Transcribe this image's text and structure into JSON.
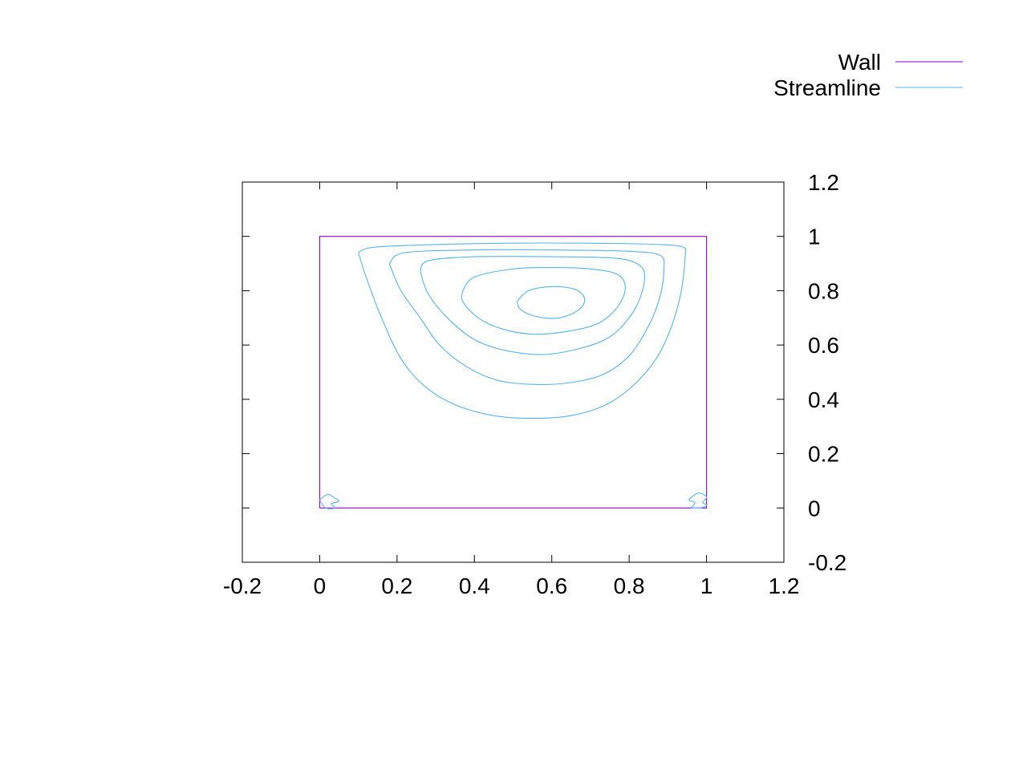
{
  "chart_data": {
    "type": "line",
    "title": "",
    "xlabel": "",
    "ylabel": "",
    "xlim": [
      -0.2,
      1.2
    ],
    "ylim": [
      -0.2,
      1.2
    ],
    "x_ticks": [
      "-0.2",
      "0",
      "0.2",
      "0.4",
      "0.6",
      "0.8",
      "1",
      "1.2"
    ],
    "y_ticks": [
      "-0.2",
      "0",
      "0.2",
      "0.4",
      "0.6",
      "0.8",
      "1",
      "1.2"
    ],
    "y_axis_side": "right",
    "grid": false,
    "legend_position": "top-right",
    "legend": [
      {
        "label": "Wall",
        "color": "#9400d3"
      },
      {
        "label": "Streamline",
        "color": "#56b4e9"
      }
    ],
    "series": [
      {
        "name": "Wall",
        "color": "#9400d3",
        "paths": [
          [
            [
              0,
              0
            ],
            [
              1,
              0
            ],
            [
              1,
              1
            ],
            [
              0,
              1
            ],
            [
              0,
              0
            ]
          ]
        ]
      },
      {
        "name": "Streamline",
        "color": "#56b4e9",
        "paths": [
          [
            [
              0.1,
              0.94
            ],
            [
              0.14,
              0.96
            ],
            [
              0.3,
              0.97
            ],
            [
              0.5,
              0.975
            ],
            [
              0.7,
              0.975
            ],
            [
              0.88,
              0.97
            ],
            [
              0.94,
              0.96
            ],
            [
              0.945,
              0.93
            ],
            [
              0.935,
              0.8
            ],
            [
              0.91,
              0.67
            ],
            [
              0.87,
              0.55
            ],
            [
              0.81,
              0.45
            ],
            [
              0.74,
              0.38
            ],
            [
              0.65,
              0.34
            ],
            [
              0.55,
              0.33
            ],
            [
              0.45,
              0.34
            ],
            [
              0.35,
              0.38
            ],
            [
              0.27,
              0.45
            ],
            [
              0.21,
              0.55
            ],
            [
              0.16,
              0.7
            ],
            [
              0.12,
              0.85
            ],
            [
              0.1,
              0.94
            ]
          ],
          [
            [
              0.18,
              0.9
            ],
            [
              0.22,
              0.94
            ],
            [
              0.4,
              0.95
            ],
            [
              0.6,
              0.95
            ],
            [
              0.8,
              0.945
            ],
            [
              0.88,
              0.93
            ],
            [
              0.89,
              0.88
            ],
            [
              0.88,
              0.78
            ],
            [
              0.85,
              0.67
            ],
            [
              0.8,
              0.56
            ],
            [
              0.73,
              0.49
            ],
            [
              0.64,
              0.46
            ],
            [
              0.55,
              0.455
            ],
            [
              0.46,
              0.47
            ],
            [
              0.38,
              0.52
            ],
            [
              0.31,
              0.6
            ],
            [
              0.26,
              0.7
            ],
            [
              0.21,
              0.8
            ],
            [
              0.18,
              0.9
            ]
          ],
          [
            [
              0.26,
              0.87
            ],
            [
              0.28,
              0.91
            ],
            [
              0.4,
              0.925
            ],
            [
              0.6,
              0.925
            ],
            [
              0.76,
              0.92
            ],
            [
              0.82,
              0.9
            ],
            [
              0.84,
              0.86
            ],
            [
              0.83,
              0.78
            ],
            [
              0.8,
              0.7
            ],
            [
              0.75,
              0.63
            ],
            [
              0.68,
              0.59
            ],
            [
              0.58,
              0.565
            ],
            [
              0.48,
              0.58
            ],
            [
              0.4,
              0.62
            ],
            [
              0.33,
              0.7
            ],
            [
              0.28,
              0.79
            ],
            [
              0.26,
              0.87
            ]
          ],
          [
            [
              0.37,
              0.8
            ],
            [
              0.4,
              0.85
            ],
            [
              0.5,
              0.88
            ],
            [
              0.6,
              0.885
            ],
            [
              0.7,
              0.88
            ],
            [
              0.77,
              0.86
            ],
            [
              0.79,
              0.81
            ],
            [
              0.77,
              0.74
            ],
            [
              0.72,
              0.68
            ],
            [
              0.64,
              0.65
            ],
            [
              0.55,
              0.64
            ],
            [
              0.47,
              0.66
            ],
            [
              0.41,
              0.7
            ],
            [
              0.37,
              0.76
            ],
            [
              0.37,
              0.8
            ]
          ],
          [
            [
              0.51,
              0.76
            ],
            [
              0.54,
              0.8
            ],
            [
              0.6,
              0.815
            ],
            [
              0.66,
              0.805
            ],
            [
              0.685,
              0.77
            ],
            [
              0.67,
              0.73
            ],
            [
              0.62,
              0.7
            ],
            [
              0.56,
              0.705
            ],
            [
              0.52,
              0.73
            ],
            [
              0.51,
              0.76
            ]
          ],
          [
            [
              0.0,
              0.03
            ],
            [
              0.02,
              0.05
            ],
            [
              0.035,
              0.04
            ],
            [
              0.05,
              0.025
            ],
            [
              0.03,
              0.015
            ],
            [
              0.04,
              0.0
            ],
            [
              0.015,
              0.0
            ],
            [
              0.0,
              0.03
            ]
          ],
          [
            [
              0.96,
              0.0
            ],
            [
              0.97,
              0.02
            ],
            [
              0.955,
              0.03
            ],
            [
              0.98,
              0.055
            ],
            [
              1.0,
              0.04
            ],
            [
              0.99,
              0.02
            ],
            [
              1.0,
              0.01
            ],
            [
              0.985,
              0.0
            ],
            [
              0.96,
              0.0
            ]
          ]
        ]
      }
    ]
  }
}
